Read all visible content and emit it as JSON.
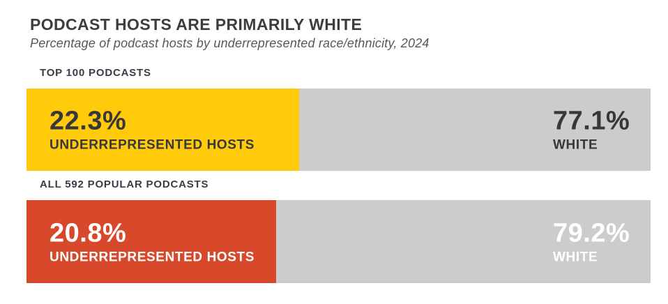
{
  "header": {
    "title": "PODCAST HOSTS ARE PRIMARILY WHITE",
    "subtitle": "Percentage of podcast hosts by underrepresented race/ethnicity, 2024"
  },
  "colors": {
    "background": "#ffffff",
    "top100_underrepresented": "#FFCA0A",
    "all_podcasts_underrepresented": "#D8482B",
    "white_segment_gray": "#CCCCCC",
    "dark_text": "#37373c",
    "light_text": "#FFFFFF",
    "title_text": "#3d3d40",
    "subtitle_text": "#58585c",
    "bar_label_text": "#3a3d45"
  },
  "chart_data": {
    "type": "bar",
    "orientation": "horizontal",
    "stacked": true,
    "title": "PODCAST HOSTS ARE PRIMARILY WHITE",
    "subtitle": "Percentage of podcast hosts by underrepresented race/ethnicity, 2024",
    "categories": [
      "TOP 100 PODCASTS",
      "ALL 592 POPULAR PODCASTS"
    ],
    "series": [
      {
        "name": "UNDERREPRESENTED HOSTS",
        "values": [
          22.3,
          20.8
        ],
        "colors": [
          "#FFCA0A",
          "#D8482B"
        ]
      },
      {
        "name": "WHITE",
        "values": [
          77.1,
          79.2
        ],
        "colors": [
          "#CCCCCC",
          "#CCCCCC"
        ]
      }
    ],
    "unit": "%",
    "year": "2024",
    "legend_position": "none",
    "grid": false,
    "layout_hints": {
      "note": "Colored segments are drawn wider than their data values for stylistic emphasis",
      "rendered_colored_segment_pct": [
        43.7,
        40.0
      ],
      "value_labels_inside_bars": true
    }
  },
  "bars": [
    {
      "label": "TOP 100 PODCASTS",
      "segment_color": "#FFCA0A",
      "left_value": "22.3%",
      "left_caption": "UNDERREPRESENTED HOSTS",
      "left_text_color": "#37373c",
      "right_value": "77.1%",
      "right_caption": "WHITE",
      "right_text_color": "#37373c"
    },
    {
      "label": "ALL 592 POPULAR PODCASTS",
      "segment_color": "#D8482B",
      "left_value": "20.8%",
      "left_caption": "UNDERREPRESENTED HOSTS",
      "left_text_color": "#FFFFFF",
      "right_value": "79.2%",
      "right_caption": "WHITE",
      "right_text_color": "#FFFFFF"
    }
  ]
}
